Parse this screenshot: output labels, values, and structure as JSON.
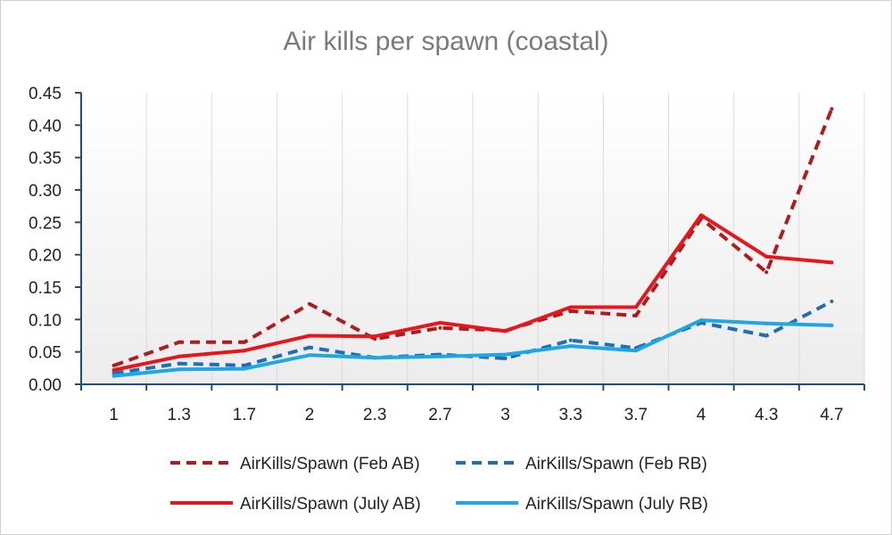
{
  "chart_data": {
    "type": "line",
    "title": "Air kills per spawn (coastal)",
    "xlabel": "",
    "ylabel": "",
    "categories": [
      "1",
      "1.3",
      "1.7",
      "2",
      "2.3",
      "2.7",
      "3",
      "3.3",
      "3.7",
      "4",
      "4.3",
      "4.7"
    ],
    "ylim": [
      0,
      0.45
    ],
    "yticks": [
      "0.00",
      "0.05",
      "0.10",
      "0.15",
      "0.20",
      "0.25",
      "0.30",
      "0.35",
      "0.40",
      "0.45"
    ],
    "grid": "vertical",
    "legend_position": "bottom",
    "series": [
      {
        "name": "AirKills/Spawn (Feb AB)",
        "color": "#b01c1c",
        "style": "dashed",
        "values": [
          0.029,
          0.065,
          0.065,
          0.124,
          0.07,
          0.087,
          0.083,
          0.113,
          0.106,
          0.256,
          0.173,
          0.425
        ]
      },
      {
        "name": "AirKills/Spawn (Feb RB)",
        "color": "#1f6fb5",
        "style": "dashed",
        "values": [
          0.017,
          0.032,
          0.029,
          0.057,
          0.041,
          0.046,
          0.04,
          0.068,
          0.056,
          0.095,
          0.075,
          0.128
        ]
      },
      {
        "name": "AirKills/Spawn (July AB)",
        "color": "#e8161a",
        "style": "solid",
        "values": [
          0.022,
          0.043,
          0.052,
          0.075,
          0.074,
          0.095,
          0.082,
          0.119,
          0.119,
          0.261,
          0.197,
          0.188
        ]
      },
      {
        "name": "AirKills/Spawn (July RB)",
        "color": "#1fa7e3",
        "style": "solid",
        "values": [
          0.013,
          0.023,
          0.024,
          0.045,
          0.041,
          0.043,
          0.046,
          0.059,
          0.052,
          0.099,
          0.094,
          0.091
        ]
      }
    ]
  }
}
